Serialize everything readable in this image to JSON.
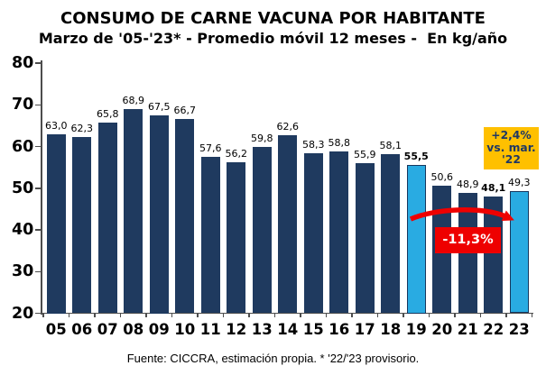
{
  "title": "CONSUMO DE CARNE VACUNA POR HABITANTE",
  "subtitle": "Marzo de '05-'23* - Promedio móvil 12 meses -  En kg/año",
  "footer": "Fuente: CICCRA, estimación propia. * '22/'23 provisorio.",
  "chart_data": {
    "type": "bar",
    "categories": [
      "05",
      "06",
      "07",
      "08",
      "09",
      "10",
      "11",
      "12",
      "13",
      "14",
      "15",
      "16",
      "17",
      "18",
      "19",
      "20",
      "21",
      "22",
      "23"
    ],
    "values": [
      63.0,
      62.3,
      65.8,
      68.9,
      67.5,
      66.7,
      57.6,
      56.2,
      59.8,
      62.6,
      58.3,
      58.8,
      55.9,
      58.1,
      55.5,
      50.6,
      48.9,
      48.1,
      49.3
    ],
    "value_labels": [
      "63,0",
      "62,3",
      "65,8",
      "68,9",
      "67,5",
      "66,7",
      "57,6",
      "56,2",
      "59,8",
      "62,6",
      "58,3",
      "58,8",
      "55,9",
      "58,1",
      "55,5",
      "50,6",
      "48,9",
      "48,1",
      "49,3"
    ],
    "highlight_indices": [
      14,
      18
    ],
    "bold_label_indices": [
      14,
      17
    ],
    "ylim": [
      20,
      80
    ],
    "ytick_step": 10,
    "bar_color": "#1f3a5f",
    "highlight_color": "#29abe2",
    "highlight_border_color": "#17375e",
    "grid": false,
    "annotations": {
      "increase": {
        "line1": "+2,4%",
        "line2": "vs. mar.",
        "line3": "'22",
        "bg": "#ffc000",
        "color": "#1f3864"
      },
      "decrease": {
        "text": "-11,3%",
        "bg": "#ee0000",
        "color": "#ffffff"
      }
    }
  }
}
